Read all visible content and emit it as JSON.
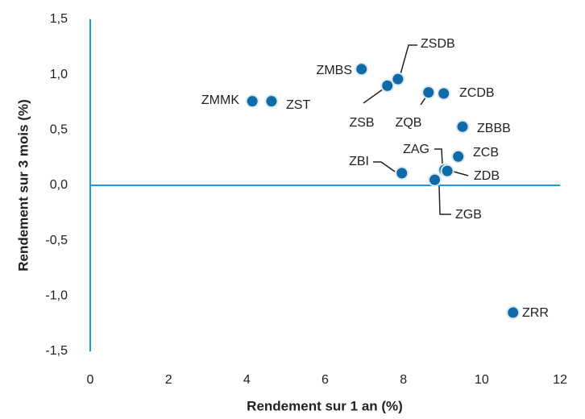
{
  "chart_data": {
    "type": "scatter",
    "xlabel": "Rendement sur 1 an (%)",
    "ylabel": "Rendement sur 3 mois (%)",
    "color": "#0f6aa6",
    "axis_color": "#1a9dd9",
    "xlim": [
      0,
      12
    ],
    "xticks": [
      0,
      2,
      4,
      6,
      8,
      10,
      12
    ],
    "ylim": [
      -1.5,
      1.5
    ],
    "yticks": [
      {
        "value": -1.5,
        "label": "-1,5"
      },
      {
        "value": -1.0,
        "label": "-1,0"
      },
      {
        "value": -0.5,
        "label": "-0,5"
      },
      {
        "value": 0,
        "label": "0,0"
      },
      {
        "value": 0.5,
        "label": "0,5"
      },
      {
        "value": 1.0,
        "label": "1,0"
      },
      {
        "value": 1.5,
        "label": "1,5"
      }
    ],
    "points": [
      {
        "label": "ZMMK",
        "x": 4.14,
        "y": 0.76
      },
      {
        "label": "ZST",
        "x": 4.63,
        "y": 0.76
      },
      {
        "label": "ZMBS",
        "x": 6.93,
        "y": 1.05
      },
      {
        "label": "ZSB",
        "x": 7.59,
        "y": 0.9
      },
      {
        "label": "ZSDB",
        "x": 7.86,
        "y": 0.96
      },
      {
        "label": "ZQB",
        "x": 8.64,
        "y": 0.84
      },
      {
        "label": "ZCDB",
        "x": 9.03,
        "y": 0.83
      },
      {
        "label": "ZBBB",
        "x": 9.51,
        "y": 0.53
      },
      {
        "label": "ZCB",
        "x": 9.4,
        "y": 0.26
      },
      {
        "label": "ZAG",
        "x": 9.05,
        "y": 0.14
      },
      {
        "label": "ZDB",
        "x": 9.12,
        "y": 0.13
      },
      {
        "label": "ZBI",
        "x": 7.96,
        "y": 0.11
      },
      {
        "label": "ZGB",
        "x": 8.8,
        "y": 0.05
      },
      {
        "label": "ZRR",
        "x": 10.8,
        "y": -1.15
      }
    ]
  }
}
